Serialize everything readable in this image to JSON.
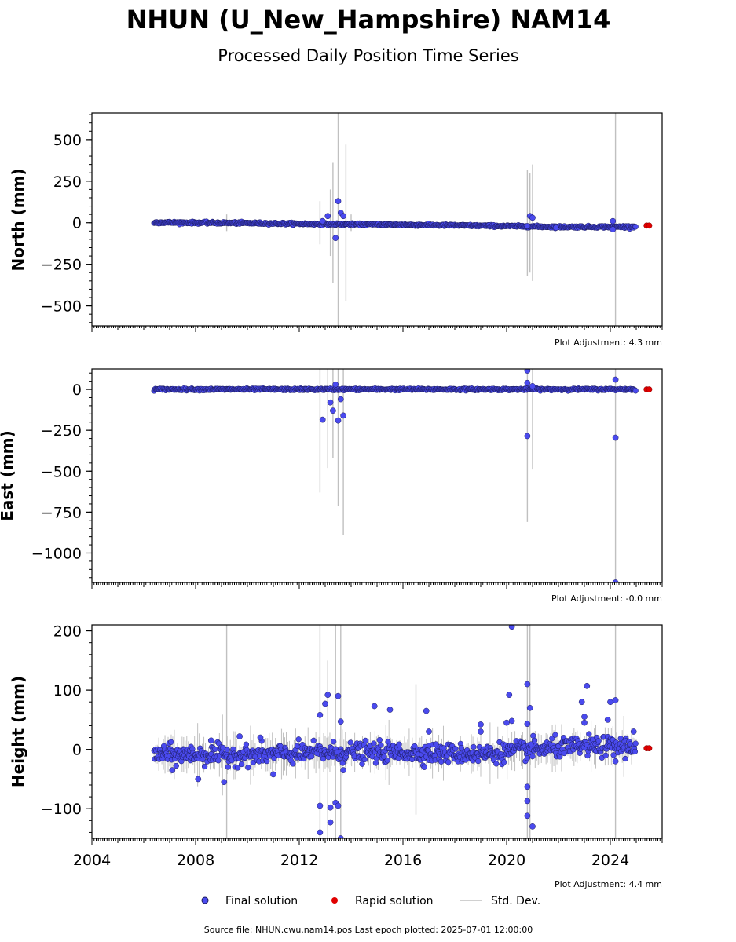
{
  "header": {
    "title": "NHUN (U_New_Hampshire) NAM14",
    "subtitle": "Processed Daily Position Time Series"
  },
  "colors": {
    "final": "#4a4aee",
    "final_edge": "#1a1a5a",
    "rapid": "#e00000",
    "stddev": "#c0c0c0"
  },
  "chart_data": [
    {
      "type": "scatter",
      "ylabel": "North (mm)",
      "adjustment": "Plot Adjustment: 4.3 mm",
      "ylim": [
        -620,
        660
      ],
      "yticks": [
        500,
        250,
        0,
        -250,
        -500
      ],
      "ytick_labels": [
        "500",
        "250",
        "0",
        "−250",
        "−500"
      ],
      "xlim": [
        2004.0,
        2026.0
      ],
      "show_xticklabels": false,
      "trend": [
        [
          2006.4,
          2
        ],
        [
          2010,
          -2
        ],
        [
          2013,
          -8
        ],
        [
          2016,
          -12
        ],
        [
          2020,
          -20
        ],
        [
          2022,
          -25
        ],
        [
          2025.0,
          -24
        ]
      ],
      "noise": 3,
      "rapid": [
        [
          2025.4,
          -17
        ],
        [
          2025.5,
          -17
        ]
      ],
      "outliers": [
        [
          2012.9,
          10
        ],
        [
          2013.1,
          40
        ],
        [
          2013.4,
          -92
        ],
        [
          2013.5,
          130
        ],
        [
          2013.6,
          60
        ],
        [
          2013.7,
          40
        ],
        [
          2020.8,
          -20
        ],
        [
          2020.9,
          40
        ],
        [
          2021.0,
          30
        ],
        [
          2021.9,
          -30
        ],
        [
          2024.1,
          -40
        ],
        [
          2024.1,
          10
        ]
      ],
      "spikes": [
        [
          2009.2,
          50
        ],
        [
          2012.8,
          130
        ],
        [
          2013.2,
          200
        ],
        [
          2013.3,
          360
        ],
        [
          2013.5,
          660
        ],
        [
          2013.8,
          470
        ],
        [
          2014.0,
          50
        ],
        [
          2020.8,
          320
        ],
        [
          2020.9,
          300
        ],
        [
          2021.0,
          350
        ],
        [
          2024.2,
          660
        ]
      ]
    },
    {
      "type": "scatter",
      "ylabel": "East (mm)",
      "adjustment": "Plot Adjustment: -0.0 mm",
      "ylim": [
        -1180,
        125
      ],
      "yticks": [
        0,
        -250,
        -500,
        -750,
        -1000
      ],
      "ytick_labels": [
        "0",
        "−250",
        "−500",
        "−750",
        "−1000"
      ],
      "xlim": [
        2004.0,
        2026.0
      ],
      "show_xticklabels": false,
      "trend": [
        [
          2006.4,
          0
        ],
        [
          2010,
          0
        ],
        [
          2015,
          0
        ],
        [
          2020,
          0
        ],
        [
          2025.0,
          0
        ]
      ],
      "noise": 3,
      "rapid": [
        [
          2025.4,
          0
        ],
        [
          2025.5,
          0
        ]
      ],
      "outliers": [
        [
          2012.9,
          -185
        ],
        [
          2013.2,
          -80
        ],
        [
          2013.3,
          -130
        ],
        [
          2013.4,
          30
        ],
        [
          2013.5,
          -190
        ],
        [
          2013.6,
          -60
        ],
        [
          2013.7,
          -160
        ],
        [
          2020.8,
          115
        ],
        [
          2020.8,
          40
        ],
        [
          2020.8,
          -285
        ],
        [
          2021.0,
          20
        ],
        [
          2024.2,
          60
        ],
        [
          2024.2,
          -295
        ],
        [
          2024.2,
          -1180
        ]
      ],
      "spikes": [
        [
          2012.8,
          630
        ],
        [
          2013.1,
          480
        ],
        [
          2013.3,
          420
        ],
        [
          2013.5,
          710
        ],
        [
          2013.7,
          890
        ],
        [
          2020.8,
          810
        ],
        [
          2021.0,
          490
        ],
        [
          2024.2,
          1180
        ]
      ]
    },
    {
      "type": "scatter",
      "ylabel": "Height (mm)",
      "adjustment": "Plot Adjustment: 4.4 mm",
      "ylim": [
        -150,
        210
      ],
      "yticks": [
        200,
        100,
        0,
        -100
      ],
      "ytick_labels": [
        "200",
        "100",
        "0",
        "−100"
      ],
      "xlim": [
        2004.0,
        2026.0
      ],
      "xticks": [
        2004,
        2008,
        2012,
        2016,
        2020,
        2024
      ],
      "xtick_labels": [
        "2004",
        "2008",
        "2012",
        "2016",
        "2020",
        "2024"
      ],
      "show_xticklabels": true,
      "trend": [
        [
          2006.4,
          -8
        ],
        [
          2010,
          -10
        ],
        [
          2013,
          -5
        ],
        [
          2016,
          -5
        ],
        [
          2019,
          -8
        ],
        [
          2021,
          0
        ],
        [
          2023,
          5
        ],
        [
          2025.0,
          5
        ]
      ],
      "noise": 8,
      "rapid": [
        [
          2025.4,
          2
        ],
        [
          2025.5,
          2
        ]
      ],
      "outliers": [
        [
          2007.1,
          -35
        ],
        [
          2008.1,
          -50
        ],
        [
          2008.6,
          15
        ],
        [
          2009.1,
          -55
        ],
        [
          2009.7,
          22
        ],
        [
          2010.5,
          20
        ],
        [
          2011.0,
          -42
        ],
        [
          2012.8,
          58
        ],
        [
          2012.8,
          -95
        ],
        [
          2012.8,
          -140
        ],
        [
          2013.1,
          92
        ],
        [
          2013.0,
          77
        ],
        [
          2013.2,
          -123
        ],
        [
          2013.2,
          -98
        ],
        [
          2013.4,
          -90
        ],
        [
          2013.5,
          90
        ],
        [
          2013.5,
          -95
        ],
        [
          2013.6,
          47
        ],
        [
          2013.7,
          -35
        ],
        [
          2013.6,
          -150
        ],
        [
          2014.9,
          73
        ],
        [
          2015.5,
          67
        ],
        [
          2016.9,
          65
        ],
        [
          2017.0,
          30
        ],
        [
          2019.0,
          42
        ],
        [
          2019.0,
          30
        ],
        [
          2020.0,
          45
        ],
        [
          2020.1,
          92
        ],
        [
          2020.2,
          48
        ],
        [
          2020.2,
          207
        ],
        [
          2020.8,
          110
        ],
        [
          2020.8,
          43
        ],
        [
          2020.9,
          70
        ],
        [
          2020.8,
          -63
        ],
        [
          2020.8,
          -87
        ],
        [
          2020.8,
          -112
        ],
        [
          2021.0,
          -130
        ],
        [
          2022.9,
          80
        ],
        [
          2023.0,
          55
        ],
        [
          2023.1,
          107
        ],
        [
          2023.0,
          45
        ],
        [
          2023.9,
          50
        ],
        [
          2024.0,
          80
        ],
        [
          2024.2,
          83
        ],
        [
          2024.2,
          -20
        ],
        [
          2024.9,
          30
        ]
      ],
      "spikes": [
        [
          2009.2,
          210
        ],
        [
          2012.8,
          210
        ],
        [
          2013.1,
          150
        ],
        [
          2013.4,
          210
        ],
        [
          2013.6,
          210
        ],
        [
          2016.5,
          110
        ],
        [
          2020.8,
          210
        ],
        [
          2020.9,
          210
        ],
        [
          2024.2,
          210
        ]
      ]
    }
  ],
  "legend": {
    "final": "Final solution",
    "rapid": "Rapid solution",
    "stddev": "Std. Dev."
  },
  "footer": {
    "source": "Source file: NHUN.cwu.nam14.pos  Last epoch plotted: 2025-07-01 12:00:00"
  }
}
